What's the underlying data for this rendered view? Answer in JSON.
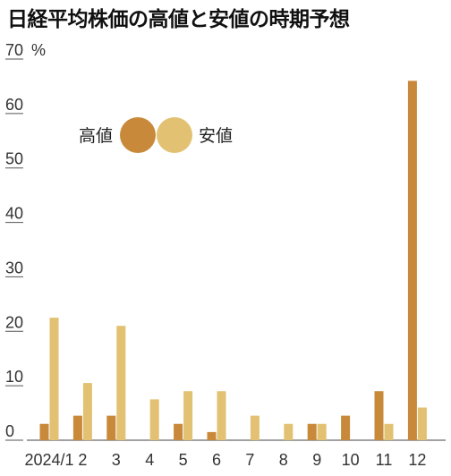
{
  "chart_data": {
    "type": "bar",
    "title": "日経平均株価の高値と安値の時期予想",
    "yunit": "%",
    "ylim": [
      0,
      70
    ],
    "yticks": [
      0,
      10,
      20,
      30,
      40,
      50,
      60,
      70
    ],
    "grid": false,
    "legend_position": "upper-left",
    "categories": [
      "2024/1",
      "2",
      "3",
      "4",
      "5",
      "6",
      "7",
      "8",
      "9",
      "10",
      "11",
      "12"
    ],
    "series": [
      {
        "name": "高値",
        "color": "#c8893a",
        "values": [
          3,
          4.5,
          4.5,
          0,
          3,
          1.5,
          0,
          0,
          3,
          4.5,
          9,
          66
        ]
      },
      {
        "name": "安値",
        "color": "#e2c172",
        "values": [
          22.5,
          10.5,
          21,
          7.5,
          9,
          9,
          4.5,
          3,
          3,
          0,
          3,
          6
        ]
      }
    ]
  }
}
